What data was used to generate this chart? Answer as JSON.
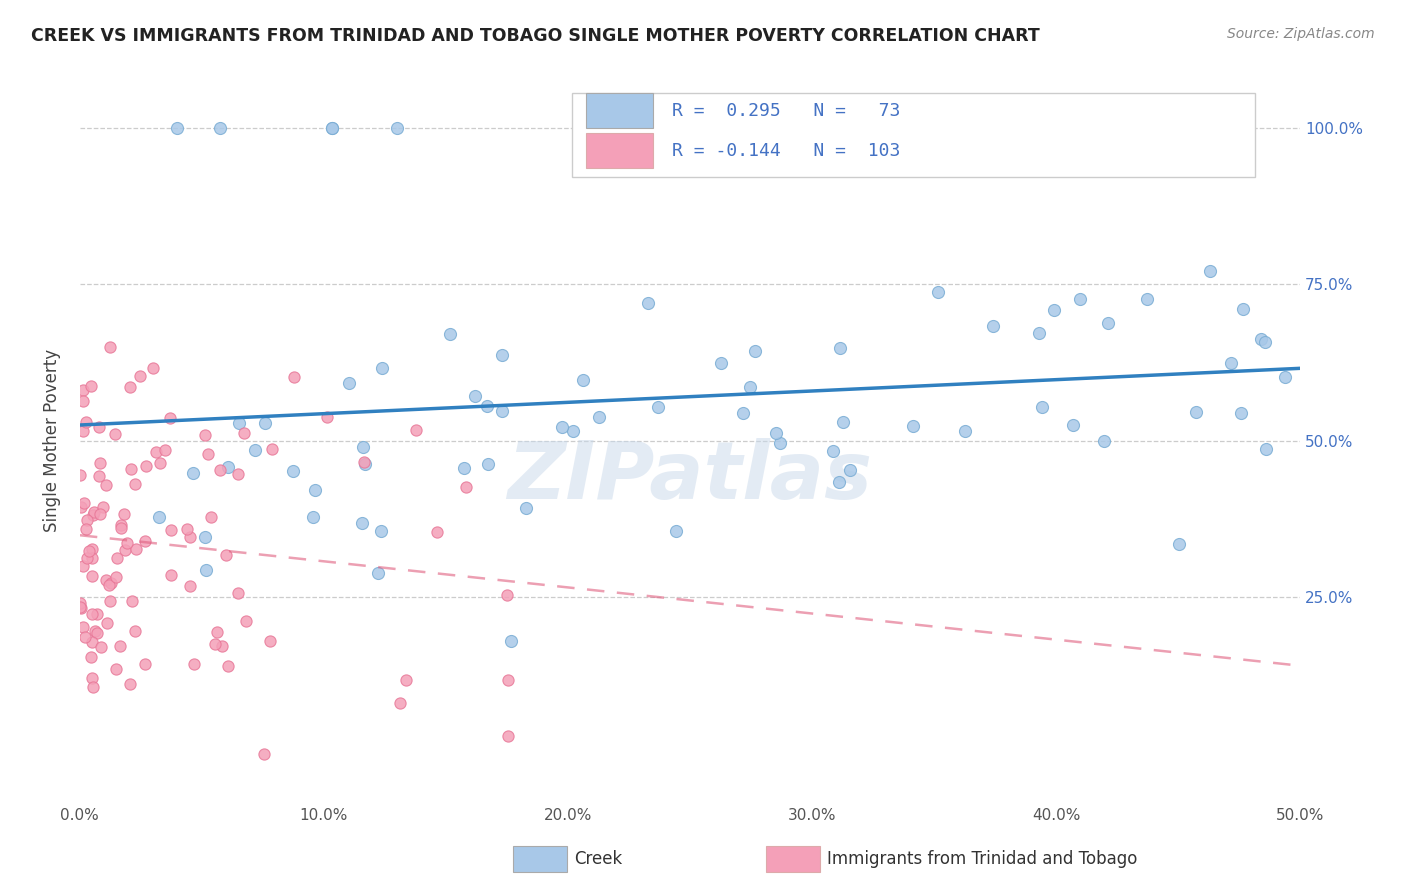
{
  "title": "CREEK VS IMMIGRANTS FROM TRINIDAD AND TOBAGO SINGLE MOTHER POVERTY CORRELATION CHART",
  "source": "Source: ZipAtlas.com",
  "ylabel": "Single Mother Poverty",
  "xlim": [
    0.0,
    0.5
  ],
  "ylim": [
    -0.08,
    1.08
  ],
  "blue_color": "#a8c8e8",
  "blue_edge_color": "#7aadd4",
  "pink_color": "#f4a0b8",
  "pink_edge_color": "#e87898",
  "blue_line_color": "#3080c0",
  "pink_line_color": "#e06080",
  "legend_blue_label": "Creek",
  "legend_pink_label": "Immigrants from Trinidad and Tobago",
  "R_blue": 0.295,
  "N_blue": 73,
  "R_pink": -0.144,
  "N_pink": 103,
  "watermark": "ZIPatlas",
  "right_tick_color": "#4472c4"
}
